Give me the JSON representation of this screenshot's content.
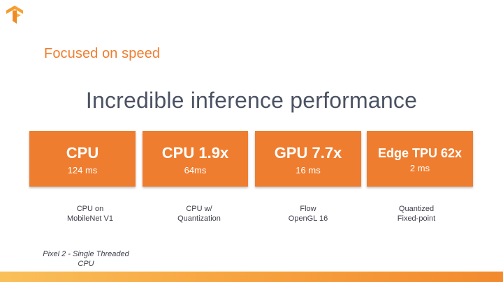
{
  "brand": {
    "logo_icon": "tensorflow-logo-icon",
    "accent_color": "#ef7d2f"
  },
  "header": {
    "section_title": "Focused on speed"
  },
  "main": {
    "title": "Incredible inference performance"
  },
  "cards": [
    {
      "title": "CPU",
      "value": "124 ms",
      "caption_line1": "CPU on",
      "caption_line2": "MobileNet V1"
    },
    {
      "title": "CPU 1.9x",
      "value": "64ms",
      "caption_line1": "CPU w/",
      "caption_line2": "Quantization"
    },
    {
      "title": "GPU 7.7x",
      "value": "16 ms",
      "caption_line1": "Flow",
      "caption_line2": "OpenGL 16"
    },
    {
      "title": "Edge TPU 62x",
      "value": "2 ms",
      "caption_line1": "Quantized",
      "caption_line2": "Fixed-point"
    }
  ],
  "footnote": {
    "line1": "Pixel 2 - Single Threaded",
    "line2": "CPU"
  }
}
